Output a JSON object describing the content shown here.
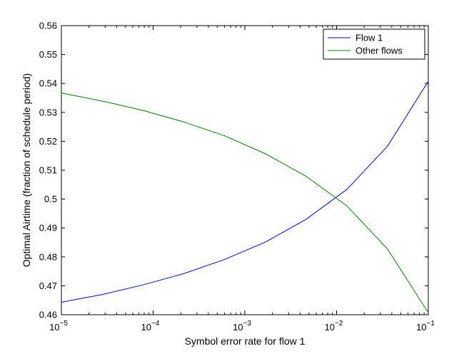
{
  "chart_data": {
    "type": "line",
    "xscale": "log",
    "xlim": [
      1e-05,
      0.1
    ],
    "ylim": [
      0.46,
      0.56
    ],
    "xlabel": "Symbol error rate for flow 1",
    "ylabel": "Optimal Airtime (fraction of schedule period)",
    "grid": false,
    "legend_position": "top-right",
    "x_ticks": [
      {
        "value": 1e-05,
        "base": "10",
        "exp": "−5"
      },
      {
        "value": 0.0001,
        "base": "10",
        "exp": "−4"
      },
      {
        "value": 0.001,
        "base": "10",
        "exp": "−3"
      },
      {
        "value": 0.01,
        "base": "10",
        "exp": "−2"
      },
      {
        "value": 0.1,
        "base": "10",
        "exp": "−1"
      }
    ],
    "y_ticks": [
      "0.46",
      "0.47",
      "0.48",
      "0.49",
      "0.5",
      "0.51",
      "0.52",
      "0.53",
      "0.54",
      "0.55",
      "0.56"
    ],
    "series": [
      {
        "name": "Flow 1",
        "color": "#0000ff",
        "x": [
          1e-05,
          2.8e-05,
          7.7e-05,
          0.000215,
          0.0006,
          0.00167,
          0.00464,
          0.0129,
          0.0359,
          0.1
        ],
        "y": [
          0.4643,
          0.467,
          0.4703,
          0.4742,
          0.4791,
          0.4851,
          0.493,
          0.5033,
          0.5183,
          0.5408
        ]
      },
      {
        "name": "Other flows",
        "color": "#008000",
        "x": [
          1e-05,
          2.8e-05,
          7.7e-05,
          0.000215,
          0.0006,
          0.00167,
          0.00464,
          0.0129,
          0.0359,
          0.1
        ],
        "y": [
          0.5367,
          0.5339,
          0.5307,
          0.5267,
          0.5219,
          0.5157,
          0.5079,
          0.4977,
          0.4827,
          0.4607
        ]
      }
    ]
  }
}
